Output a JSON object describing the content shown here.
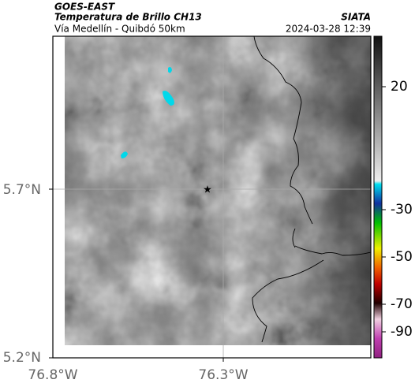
{
  "header": {
    "satellite": "GOES-EAST",
    "title": "Temperatura de Brillo CH13",
    "subtitle": "Vía Medellín - Quibdó 50km",
    "source": "SIATA",
    "datetime": "2024-03-28 12:39"
  },
  "map": {
    "lat_labels": [
      "5.7°N",
      "5.2°N"
    ],
    "lon_labels": [
      "76.8°W",
      "76.3°W"
    ]
  },
  "colorbar": {
    "tick_labels": [
      20,
      -30,
      -50,
      -70,
      -90
    ]
  }
}
